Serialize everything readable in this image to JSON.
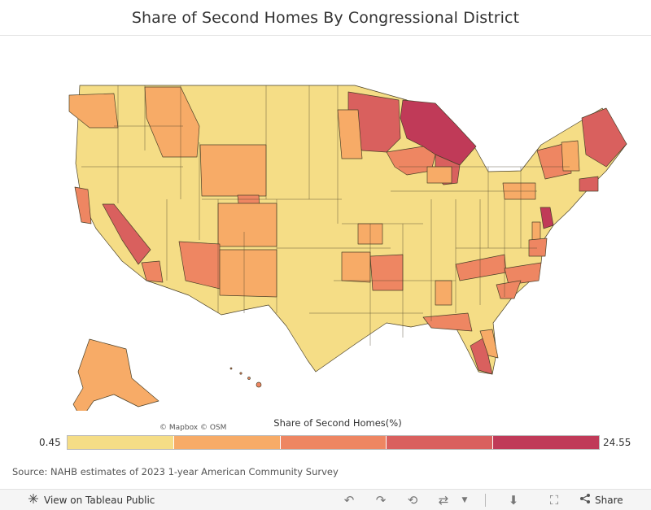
{
  "header": {
    "title": "Share of Second Homes By Congressional District"
  },
  "map": {
    "attribution": "© Mapbox  © OSM",
    "legend": {
      "title": "Share of Second Homes(%)",
      "min_label": "0.45",
      "max_label": "24.55",
      "bins": [
        "#f5dd86",
        "#f7ab67",
        "#ee8662",
        "#d9605e",
        "#c03a58"
      ]
    },
    "colors": {
      "lowest": "#f5dd86",
      "low": "#f7ab67",
      "mid": "#ee8662",
      "high": "#d9605e",
      "highest": "#c03a58",
      "border": "#4a4028"
    }
  },
  "source": "Source: NAHB estimates of 2023 1-year American Community Survey",
  "toolbar": {
    "view_label": "View on Tableau Public",
    "share_label": "Share",
    "icons": [
      "tableau-logo-icon",
      "undo-icon",
      "redo-icon",
      "revert-icon",
      "refresh-icon",
      "dropdown-caret-icon",
      "download-icon",
      "fullscreen-icon",
      "share-icon"
    ]
  }
}
